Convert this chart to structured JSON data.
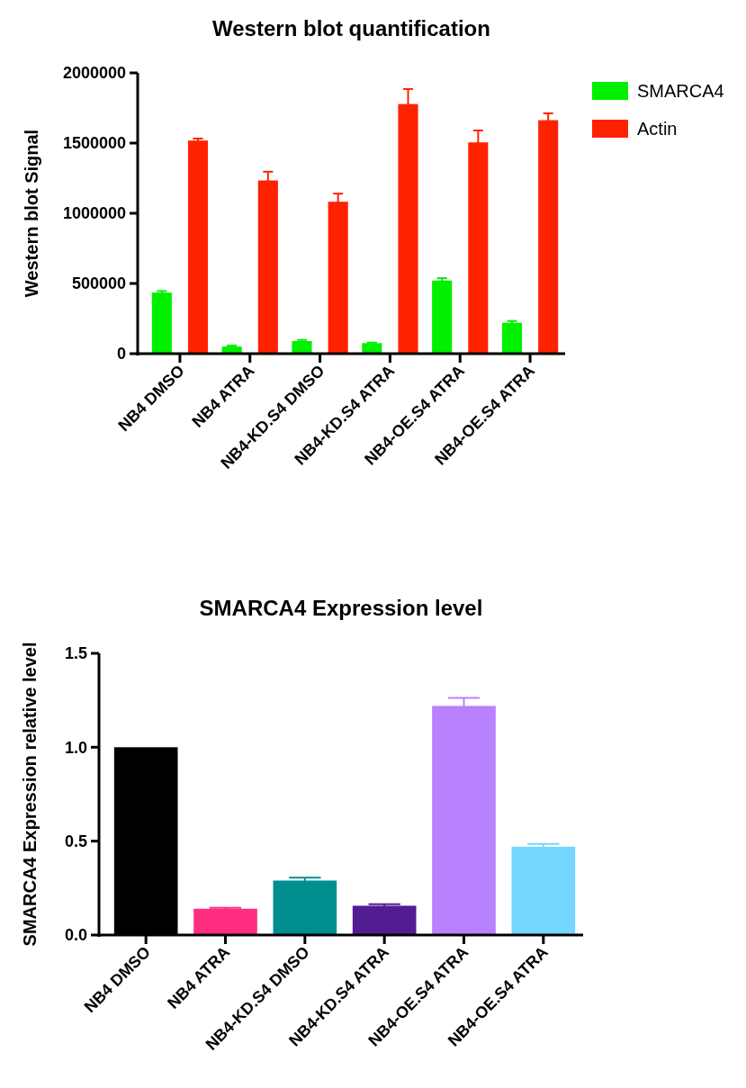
{
  "chart_data": [
    {
      "type": "bar",
      "title": "Western blot quantification",
      "ylabel": "Western blot Signal",
      "categories": [
        "NB4 DMSO",
        "NB4 ATRA",
        "NB4-KD.S4 DMSO",
        "NB4-KD.S4 ATRA",
        "NB4-OE.S4 ATRA",
        "NB4-OE.S4 ATRA"
      ],
      "series": [
        {
          "name": "SMARCA4",
          "color": "#00f000",
          "values": [
            435000,
            51000,
            90000,
            75000,
            521000,
            220000
          ],
          "errors": [
            11000,
            7000,
            8000,
            4000,
            17000,
            13000
          ]
        },
        {
          "name": "Actin",
          "color": "#ff2200",
          "values": [
            1518000,
            1234000,
            1082000,
            1778000,
            1505000,
            1663000
          ],
          "errors": [
            14000,
            62000,
            58000,
            107000,
            85000,
            49000
          ]
        }
      ],
      "ylim": [
        0,
        2000000
      ],
      "yticks": [
        0,
        500000,
        1000000,
        1500000,
        2000000
      ],
      "legend": "top right",
      "grid": false
    },
    {
      "type": "bar",
      "title": "SMARCA4 Expression level",
      "ylabel": "SMARCA4 Expression relative level",
      "categories": [
        "NB4 DMSO",
        "NB4 ATRA",
        "NB4-KD.S4 DMSO",
        "NB4-KD.S4 ATRA",
        "NB4-OE.S4 ATRA",
        "NB4-OE.S4 ATRA"
      ],
      "values": [
        1.0,
        0.14,
        0.29,
        0.156,
        1.22,
        0.47
      ],
      "errors": [
        null,
        0.005,
        0.015,
        0.008,
        0.043,
        0.015
      ],
      "colors": [
        "#000000",
        "#ff2d7f",
        "#008e8f",
        "#521c93",
        "#b881fe",
        "#76d6ff"
      ],
      "ylim": [
        0,
        1.5
      ],
      "yticks": [
        {
          "value": 0,
          "label": "0.0"
        },
        {
          "value": 0.5,
          "label": "0.5"
        },
        {
          "value": 1.0,
          "label": "1.0"
        },
        {
          "value": 1.5,
          "label": "1.5"
        }
      ],
      "grid": false
    }
  ]
}
